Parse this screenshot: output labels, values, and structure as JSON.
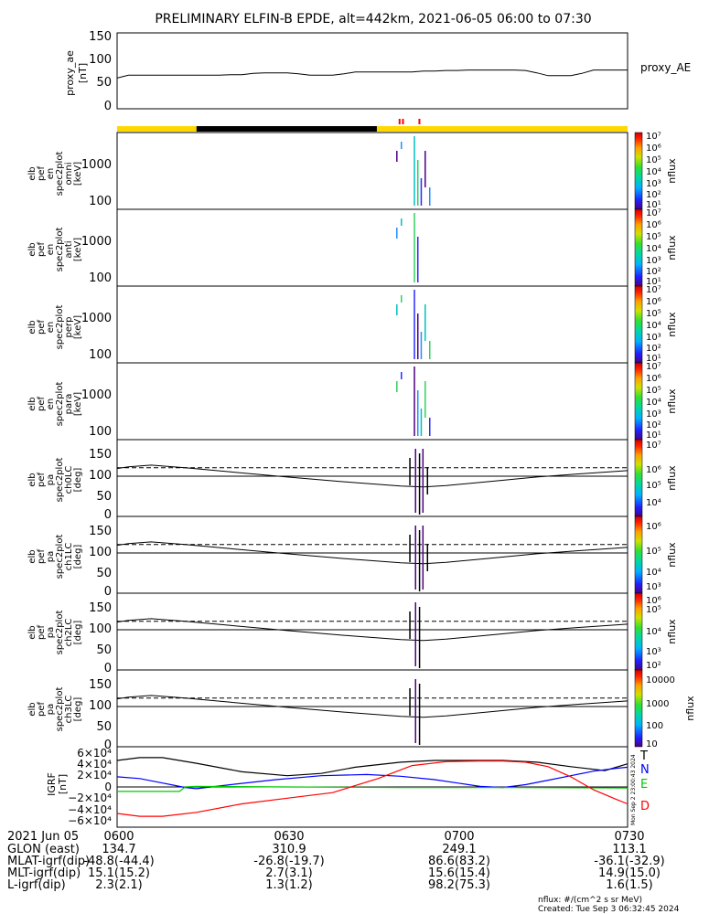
{
  "title": "PRELIMINARY ELFIN-B EPDE, alt=442km, 2021-06-05 06:00 to 07:30",
  "panels": {
    "proxy": {
      "ylabel": [
        "proxy_ae",
        "[nT]"
      ],
      "yticks": [
        "150",
        "100",
        "50",
        "0"
      ],
      "legend": "proxy_AE"
    },
    "spec": [
      {
        "ylabel": [
          "elb",
          "pef",
          "en",
          "spec2plot",
          "omni",
          "[keV]"
        ],
        "yticks": [
          "1000",
          "100"
        ]
      },
      {
        "ylabel": [
          "elb",
          "pef",
          "en",
          "spec2plot",
          "anti",
          "[keV]"
        ],
        "yticks": [
          "1000",
          "100"
        ]
      },
      {
        "ylabel": [
          "elb",
          "pef",
          "en",
          "spec2plot",
          "perp",
          "[keV]"
        ],
        "yticks": [
          "1000",
          "100"
        ]
      },
      {
        "ylabel": [
          "elb",
          "pef",
          "en",
          "spec2plot",
          "para",
          "[keV]"
        ],
        "yticks": [
          "1000",
          "100"
        ]
      }
    ],
    "pa": [
      {
        "ylabel": [
          "elb",
          "pef",
          "pa",
          "spec2plot",
          "ch0LC",
          "[deg]"
        ],
        "yticks": [
          "150",
          "100",
          "50",
          "0"
        ]
      },
      {
        "ylabel": [
          "elb",
          "pef",
          "pa",
          "spec2plot",
          "ch1LC",
          "[deg]"
        ],
        "yticks": [
          "150",
          "100",
          "50",
          "0"
        ]
      },
      {
        "ylabel": [
          "elb",
          "pef",
          "pa",
          "spec2plot",
          "ch2LC",
          "[deg]"
        ],
        "yticks": [
          "150",
          "100",
          "50",
          "0"
        ]
      },
      {
        "ylabel": [
          "elb",
          "pef",
          "pa",
          "spec2plot",
          "ch3LC",
          "[deg]"
        ],
        "yticks": [
          "150",
          "100",
          "50",
          "0"
        ]
      }
    ],
    "bfield": {
      "ylabel": [
        "IGRF",
        "[nT]"
      ],
      "yticks": [
        "6×10⁴",
        "4×10⁴",
        "2×10⁴",
        "0",
        "−2×10⁴",
        "−4×10⁴",
        "−6×10⁴"
      ],
      "legend": [
        {
          "name": "T",
          "color": "#000000"
        },
        {
          "name": "N",
          "color": "#0000ff"
        },
        {
          "name": "E",
          "color": "#00c800"
        },
        {
          "name": "D",
          "color": "#ff0000"
        }
      ],
      "stamp": "Mon Sep 2 23:00:43 2024"
    }
  },
  "colorbars": {
    "label": "nflux",
    "spec_ticks": [
      "10⁷",
      "10⁶",
      "10⁵",
      "10⁴",
      "10³",
      "10²",
      "10¹"
    ],
    "pa": [
      {
        "ticks": [
          "10⁷",
          "10⁶",
          "10⁵",
          "10⁴"
        ]
      },
      {
        "ticks": [
          "10⁶",
          "10⁵",
          "10⁴",
          "10³"
        ]
      },
      {
        "ticks": [
          "10⁶",
          "10⁵",
          "10⁴",
          "10³",
          "10²"
        ]
      },
      {
        "ticks": [
          "10000",
          "1000",
          "100",
          "10"
        ]
      }
    ]
  },
  "time_axis": {
    "rows": [
      {
        "label": "2021 Jun 05",
        "values": [
          "0600",
          "0630",
          "0700",
          "0730"
        ]
      },
      {
        "label": "GLON (east)",
        "values": [
          "134.7",
          "310.9",
          "249.1",
          "113.1"
        ]
      },
      {
        "label": "MLAT-igrf(dip)",
        "values": [
          "-48.8(-44.4)",
          "-26.8(-19.7)",
          "86.6(83.2)",
          "-36.1(-32.9)"
        ]
      },
      {
        "label": "MLT-igrf(dip)",
        "values": [
          "15.1(15.2)",
          "2.7(3.1)",
          "15.6(15.4)",
          "14.9(15.0)"
        ]
      },
      {
        "label": "L-igrf(dip)",
        "values": [
          "2.3(2.1)",
          "1.3(1.2)",
          "98.2(75.3)",
          "1.6(1.5)"
        ]
      }
    ]
  },
  "footer": {
    "units": "nflux: #/(cm^2 s sr MeV)",
    "created": "Created: Tue Sep  3 06:32:45 2024"
  },
  "chart_data": [
    {
      "type": "line",
      "x_unit": "minutes after 06:00 UT",
      "xlim": [
        0,
        90
      ],
      "ylim": [
        0,
        160
      ],
      "series": [
        {
          "name": "proxy_AE",
          "x": [
            0,
            2,
            4,
            6,
            8,
            10,
            12,
            14,
            16,
            18,
            20,
            22,
            24,
            26,
            28,
            30,
            32,
            34,
            36,
            38,
            40,
            42,
            44,
            46,
            48,
            50,
            52,
            54,
            56,
            58,
            60,
            62,
            64,
            66,
            68,
            70,
            72,
            74,
            76,
            78,
            80,
            82,
            84,
            86,
            88,
            90
          ],
          "y": [
            57,
            63,
            63,
            63,
            63,
            63,
            63,
            63,
            63,
            63,
            64,
            64,
            67,
            68,
            68,
            68,
            66,
            63,
            63,
            63,
            66,
            70,
            70,
            70,
            70,
            70,
            70,
            72,
            72,
            73,
            73,
            74,
            74,
            74,
            74,
            74,
            73,
            68,
            62,
            62,
            62,
            67,
            74,
            74,
            74,
            74
          ]
        }
      ]
    },
    {
      "type": "area",
      "description_ticks": "orbit-phase bar",
      "segments": [
        {
          "x": [
            0,
            14
          ],
          "color": "#ffd800"
        },
        {
          "x": [
            14,
            45.8
          ],
          "color": "#000000"
        },
        {
          "x": [
            45.8,
            90
          ],
          "color": "#ffd800"
        }
      ],
      "markers": [
        {
          "x": 49.8,
          "color": "#ff0000"
        },
        {
          "x": 50.4,
          "color": "#ff0000"
        },
        {
          "x": 53.3,
          "color": "#ff0000"
        }
      ]
    },
    {
      "type": "line",
      "ylim": [
        -60000,
        60000
      ],
      "series": [
        {
          "name": "T",
          "x": [
            0,
            4,
            8,
            14,
            22,
            30,
            36,
            42,
            50,
            56,
            62,
            68,
            74,
            80,
            86,
            90
          ],
          "y": [
            47000,
            52000,
            52000,
            42000,
            27000,
            20000,
            24000,
            35000,
            44000,
            47000,
            47000,
            47000,
            44000,
            36000,
            29000,
            41000
          ]
        },
        {
          "name": "N",
          "x": [
            0,
            4,
            8,
            10,
            12,
            14,
            20,
            28,
            36,
            44,
            50,
            56,
            60,
            64,
            68,
            72,
            76,
            80,
            84,
            88,
            90
          ],
          "y": [
            18000,
            15000,
            7000,
            3000,
            -1000,
            -3000,
            4000,
            13000,
            20000,
            22000,
            19000,
            13000,
            7000,
            1000,
            -1000,
            4000,
            12000,
            20000,
            28000,
            33000,
            35000
          ]
        },
        {
          "name": "E",
          "x": [
            0,
            6,
            11,
            12,
            14,
            30,
            50,
            70,
            90
          ],
          "y": [
            -8000,
            -8000,
            -8000,
            0,
            1000,
            0,
            -1000,
            -1000,
            -2000
          ]
        },
        {
          "name": "D",
          "x": [
            0,
            4,
            8,
            14,
            22,
            30,
            38,
            46,
            52,
            58,
            64,
            68,
            72,
            76,
            80,
            84,
            88,
            90
          ],
          "y": [
            -47000,
            -52000,
            -52000,
            -45000,
            -30000,
            -20000,
            -10000,
            15000,
            38000,
            45000,
            46000,
            46000,
            44000,
            36000,
            18000,
            -5000,
            -22000,
            -30000
          ]
        }
      ]
    },
    {
      "type": "line",
      "description": "pitch-angle panel reference lines (degrees)",
      "ylim": [
        0,
        180
      ],
      "series": [
        {
          "x": [
            0,
            90
          ],
          "y": [
            110,
            110
          ]
        },
        {
          "x": [
            0,
            2,
            6,
            12,
            20,
            30,
            40,
            50,
            54,
            58,
            66,
            74,
            82,
            90
          ],
          "y": [
            108,
            112,
            116,
            110,
            100,
            88,
            77,
            67,
            65,
            68,
            78,
            88,
            96,
            103
          ]
        },
        {
          "x": [
            0,
            90
          ],
          "y": [
            90,
            90
          ]
        }
      ]
    }
  ]
}
